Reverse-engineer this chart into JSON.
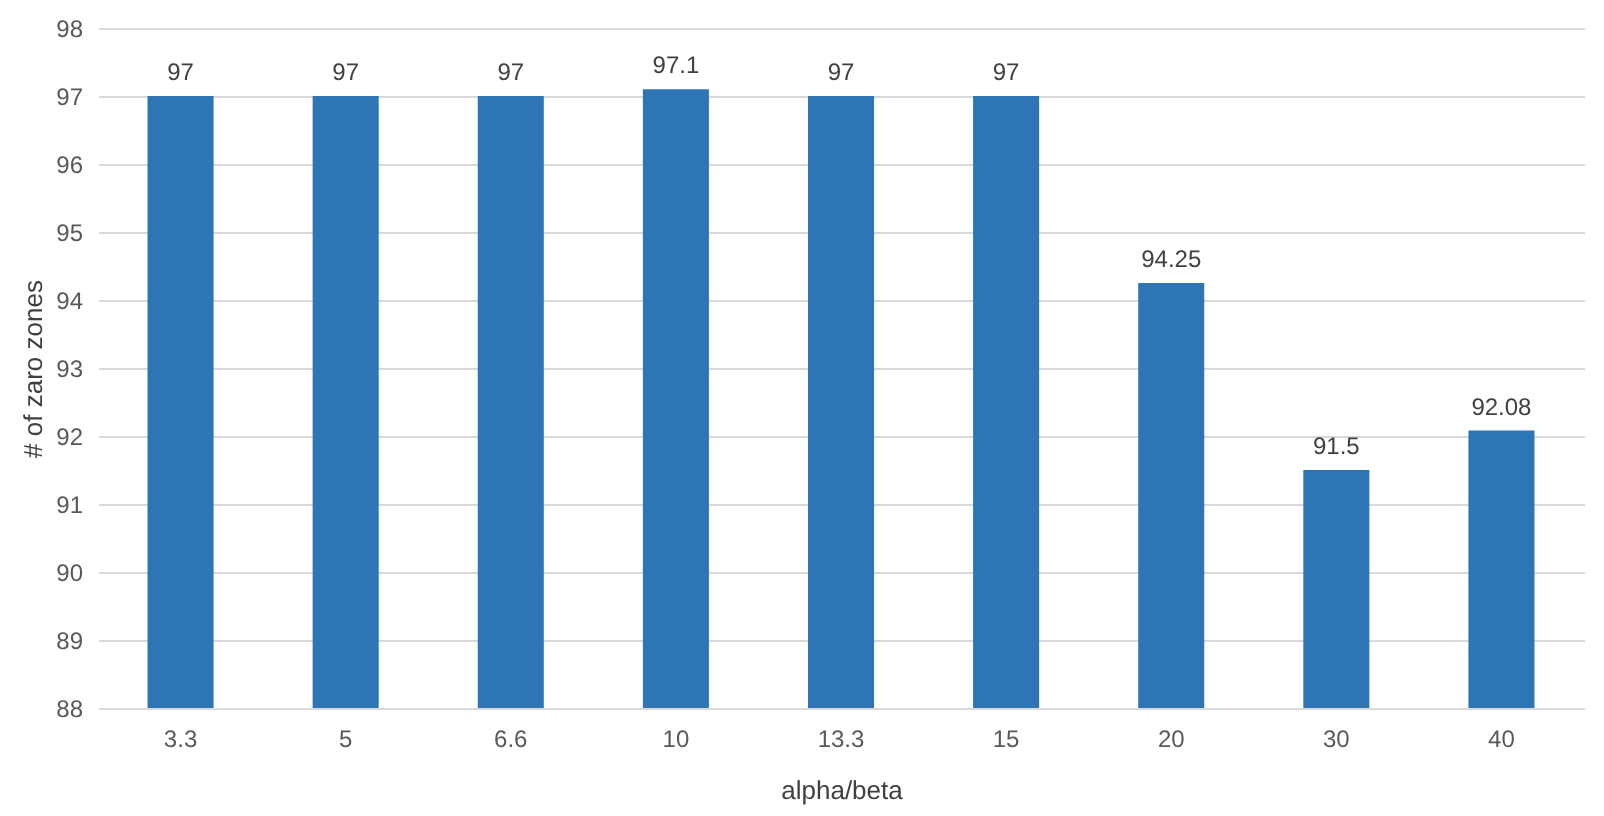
{
  "chart_data": {
    "type": "bar",
    "xlabel": "alpha/beta",
    "ylabel": "# of zaro zones",
    "categories": [
      "3.3",
      "5",
      "6.6",
      "10",
      "13.3",
      "15",
      "20",
      "30",
      "40"
    ],
    "values": [
      97,
      97,
      97,
      97.1,
      97,
      97,
      94.25,
      91.5,
      92.08
    ],
    "color": "#2e75b6",
    "ylim": [
      88,
      98
    ],
    "yticks": [
      88,
      89,
      90,
      91,
      92,
      93,
      94,
      95,
      96,
      97,
      98
    ],
    "grid": "y",
    "data_labels": true
  }
}
